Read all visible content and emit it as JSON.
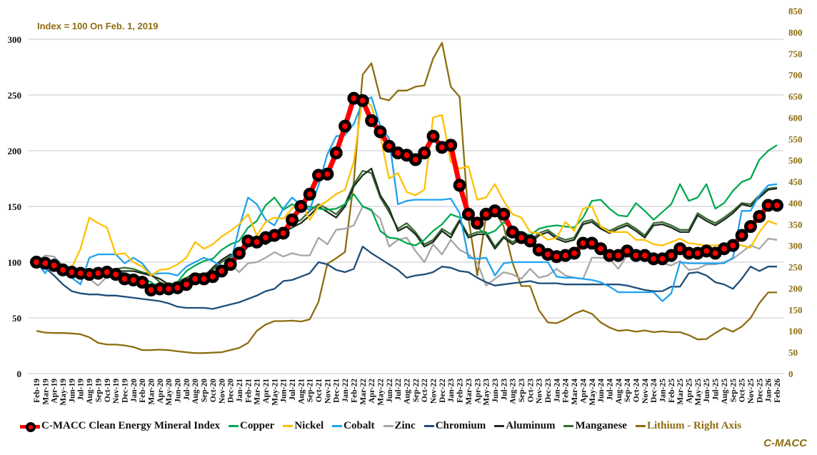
{
  "chart_data": {
    "type": "line",
    "annotation": "Index = 100 On Feb. 1, 2019",
    "source": "C-MACC",
    "x": [
      "Feb-19",
      "Mar-19",
      "Apr-19",
      "May-19",
      "Jun-19",
      "Jul-19",
      "Aug-19",
      "Sep-19",
      "Oct-19",
      "Nov-19",
      "Dec-19",
      "Jan-20",
      "Feb-20",
      "Mar-20",
      "Apr-20",
      "May-20",
      "Jun-20",
      "Jul-20",
      "Aug-20",
      "Sep-20",
      "Oct-20",
      "Nov-20",
      "Dec-20",
      "Jan-21",
      "Feb-21",
      "Mar-21",
      "Apr-21",
      "May-21",
      "Jun-21",
      "Jul-21",
      "Aug-21",
      "Sep-21",
      "Oct-21",
      "Nov-21",
      "Dec-21",
      "Jan-22",
      "Feb-22",
      "Mar-22",
      "Apr-22",
      "May-22",
      "Jun-22",
      "Jul-22",
      "Aug-22",
      "Sep-22",
      "Oct-22",
      "Nov-22",
      "Dec-22",
      "Jan-23",
      "Feb-23",
      "Mar-23",
      "Apr-23",
      "May-23",
      "Jun-23",
      "Jul-23",
      "Aug-23",
      "Sep-23",
      "Oct-23",
      "Nov-23",
      "Dec-23",
      "Jan-24",
      "Feb-24",
      "Mar-24",
      "Apr-24",
      "May-24",
      "Jun-24",
      "Jul-24",
      "Aug-24",
      "Sep-24",
      "Oct-24",
      "Nov-24",
      "Dec-24",
      "Jan-25",
      "Feb-25",
      "Mar-25",
      "Apr-25",
      "May-25",
      "Jun-25",
      "Jul-25",
      "Aug-25",
      "Sep-25",
      "Oct-25",
      "Nov-25",
      "Dec-25",
      "Jan-26",
      "Feb-26"
    ],
    "y_left": {
      "min": 0,
      "max": 300,
      "step": 50,
      "ticks": [
        "0",
        "50",
        "100",
        "150",
        "200",
        "250",
        "300"
      ]
    },
    "y_right": {
      "min": 0,
      "max": 850,
      "step": 50,
      "ticks": [
        "0",
        "50",
        "100",
        "150",
        "200",
        "250",
        "300",
        "350",
        "400",
        "450",
        "500",
        "550",
        "600",
        "650",
        "700",
        "750",
        "800",
        "850"
      ]
    },
    "grid": "horizontal",
    "legend_position": "bottom",
    "series": [
      {
        "name": "C-MACC Clean Energy Mineral Index",
        "color": "#ff0000",
        "axis": "left",
        "marker": "circle",
        "values": [
          100,
          99,
          97,
          93,
          91,
          90,
          89,
          90,
          91,
          89,
          85,
          84,
          82,
          75,
          76,
          76,
          77,
          80,
          85,
          85,
          87,
          92,
          98,
          108,
          119,
          118,
          122,
          124,
          126,
          138,
          150,
          161,
          178,
          179,
          198,
          222,
          247,
          245,
          227,
          217,
          204,
          198,
          196,
          192,
          198,
          213,
          203,
          205,
          169,
          143,
          135,
          143,
          146,
          143,
          127,
          122,
          119,
          111,
          107,
          105,
          106,
          108,
          117,
          117,
          112,
          106,
          106,
          110,
          106,
          106,
          103,
          103,
          106,
          112,
          108,
          108,
          110,
          108,
          112,
          115,
          124,
          132,
          141,
          151,
          151
        ]
      },
      {
        "name": "Copper",
        "color": "#00a84f",
        "axis": "left",
        "values": [
          100,
          97,
          93,
          90,
          88,
          88,
          89,
          90,
          92,
          92,
          90,
          88,
          86,
          82,
          77,
          80,
          82,
          92,
          97,
          101,
          103,
          111,
          116,
          119,
          131,
          137,
          151,
          158,
          147,
          152,
          148,
          150,
          148,
          147,
          148,
          152,
          161,
          150,
          147,
          128,
          122,
          121,
          117,
          115,
          120,
          128,
          134,
          143,
          140,
          140,
          131,
          125,
          128,
          136,
          129,
          127,
          124,
          130,
          132,
          133,
          132,
          131,
          140,
          155,
          156,
          148,
          142,
          141,
          153,
          146,
          138,
          145,
          152,
          170,
          155,
          158,
          170,
          148,
          153,
          164,
          172,
          175,
          192,
          200,
          205
        ]
      },
      {
        "name": "Nickel",
        "color": "#ffc000",
        "axis": "left",
        "values": [
          100,
          95,
          97,
          90,
          95,
          112,
          140,
          135,
          131,
          107,
          108,
          100,
          96,
          88,
          93,
          94,
          98,
          104,
          118,
          112,
          116,
          123,
          128,
          134,
          143,
          124,
          136,
          140,
          139,
          148,
          154,
          138,
          150,
          155,
          161,
          165,
          190,
          248,
          240,
          213,
          175,
          180,
          163,
          160,
          165,
          230,
          232,
          190,
          184,
          186,
          156,
          158,
          170,
          155,
          143,
          140,
          127,
          126,
          120,
          122,
          136,
          128,
          148,
          150,
          132,
          127,
          127,
          127,
          120,
          120,
          116,
          115,
          118,
          121,
          117,
          116,
          115,
          115,
          116,
          117,
          115,
          113,
          127,
          137,
          134
        ]
      },
      {
        "name": "Cobalt",
        "color": "#1ea2f0",
        "axis": "left",
        "values": [
          100,
          90,
          103,
          95,
          86,
          80,
          104,
          107,
          107,
          107,
          99,
          104,
          99,
          89,
          90,
          90,
          88,
          96,
          100,
          104,
          101,
          96,
          98,
          131,
          158,
          152,
          138,
          133,
          148,
          158,
          151,
          147,
          169,
          197,
          213,
          214,
          224,
          244,
          248,
          222,
          211,
          152,
          155,
          156,
          156,
          156,
          156,
          157,
          144,
          104,
          103,
          104,
          88,
          99,
          100,
          100,
          100,
          100,
          100,
          87,
          86,
          86,
          85,
          84,
          82,
          78,
          73,
          73,
          73,
          73,
          73,
          65,
          72,
          100,
          99,
          99,
          99,
          99,
          99,
          104,
          146,
          146,
          160,
          169,
          170
        ]
      },
      {
        "name": "Zinc",
        "color": "#a6a6a6",
        "axis": "left",
        "values": [
          100,
          106,
          105,
          97,
          88,
          92,
          85,
          79,
          87,
          89,
          84,
          82,
          80,
          75,
          72,
          75,
          80,
          83,
          88,
          87,
          89,
          91,
          98,
          91,
          99,
          100,
          104,
          109,
          105,
          108,
          106,
          106,
          122,
          116,
          129,
          130,
          133,
          150,
          146,
          139,
          114,
          120,
          122,
          110,
          100,
          116,
          107,
          120,
          111,
          107,
          100,
          79,
          85,
          91,
          89,
          85,
          94,
          86,
          88,
          94,
          88,
          86,
          85,
          104,
          104,
          103,
          94,
          106,
          105,
          107,
          100,
          99,
          97,
          101,
          93,
          94,
          98,
          98,
          100,
          103,
          109,
          115,
          112,
          121,
          120
        ]
      },
      {
        "name": "Chromium",
        "color": "#1f4e79",
        "axis": "left",
        "values": [
          100,
          95,
          88,
          80,
          74,
          72,
          71,
          71,
          70,
          70,
          69,
          68,
          67,
          66,
          65,
          63,
          60,
          59,
          59,
          59,
          58,
          60,
          62,
          64,
          67,
          70,
          74,
          76,
          83,
          84,
          87,
          90,
          100,
          98,
          93,
          91,
          94,
          114,
          108,
          103,
          98,
          93,
          86,
          88,
          89,
          91,
          96,
          95,
          92,
          91,
          86,
          82,
          79,
          80,
          81,
          82,
          83,
          81,
          81,
          81,
          80,
          80,
          80,
          80,
          80,
          80,
          80,
          79,
          77,
          75,
          74,
          74,
          78,
          78,
          90,
          91,
          88,
          82,
          80,
          76,
          85,
          96,
          92,
          96,
          96
        ]
      },
      {
        "name": "Aluminum",
        "color": "#1c2e1c",
        "axis": "left",
        "values": [
          100,
          98,
          96,
          92,
          91,
          91,
          91,
          91,
          92,
          92,
          92,
          92,
          90,
          88,
          85,
          80,
          80,
          84,
          88,
          87,
          95,
          102,
          107,
          105,
          114,
          119,
          116,
          121,
          127,
          131,
          135,
          142,
          150,
          145,
          140,
          150,
          168,
          178,
          184,
          160,
          148,
          128,
          132,
          125,
          114,
          118,
          128,
          122,
          137,
          122,
          125,
          125,
          112,
          122,
          116,
          121,
          117,
          124,
          127,
          121,
          118,
          120,
          134,
          136,
          130,
          126,
          130,
          133,
          128,
          122,
          133,
          134,
          131,
          127,
          127,
          142,
          137,
          133,
          138,
          144,
          152,
          150,
          158,
          165,
          166
        ]
      },
      {
        "name": "Manganese",
        "color": "#3a6b35",
        "axis": "left",
        "values": [
          100,
          99,
          95,
          91,
          92,
          90,
          92,
          92,
          93,
          94,
          95,
          94,
          91,
          89,
          82,
          79,
          82,
          86,
          90,
          89,
          93,
          100,
          105,
          107,
          116,
          121,
          119,
          123,
          129,
          134,
          138,
          146,
          152,
          148,
          143,
          152,
          170,
          182,
          180,
          158,
          145,
          130,
          135,
          127,
          116,
          120,
          130,
          125,
          138,
          124,
          127,
          127,
          114,
          123,
          118,
          123,
          119,
          126,
          129,
          123,
          120,
          122,
          136,
          138,
          132,
          128,
          132,
          135,
          130,
          124,
          135,
          136,
          133,
          129,
          129,
          144,
          139,
          135,
          140,
          146,
          153,
          152,
          160,
          166,
          167
        ]
      },
      {
        "name": "Lithium - Right Axis",
        "color": "#8c6d10",
        "axis": "right",
        "values": [
          100,
          96,
          95,
          95,
          94,
          92,
          85,
          72,
          68,
          68,
          66,
          62,
          55,
          55,
          56,
          55,
          52,
          50,
          48,
          48,
          49,
          50,
          55,
          60,
          72,
          100,
          115,
          123,
          123,
          124,
          122,
          127,
          168,
          257,
          270,
          285,
          450,
          700,
          727,
          645,
          640,
          663,
          663,
          672,
          675,
          738,
          775,
          672,
          648,
          365,
          230,
          370,
          380,
          345,
          260,
          205,
          205,
          148,
          120,
          118,
          127,
          140,
          148,
          140,
          120,
          108,
          100,
          102,
          98,
          101,
          97,
          99,
          97,
          97,
          90,
          80,
          81,
          95,
          107,
          98,
          110,
          130,
          165,
          190,
          190
        ]
      }
    ]
  }
}
